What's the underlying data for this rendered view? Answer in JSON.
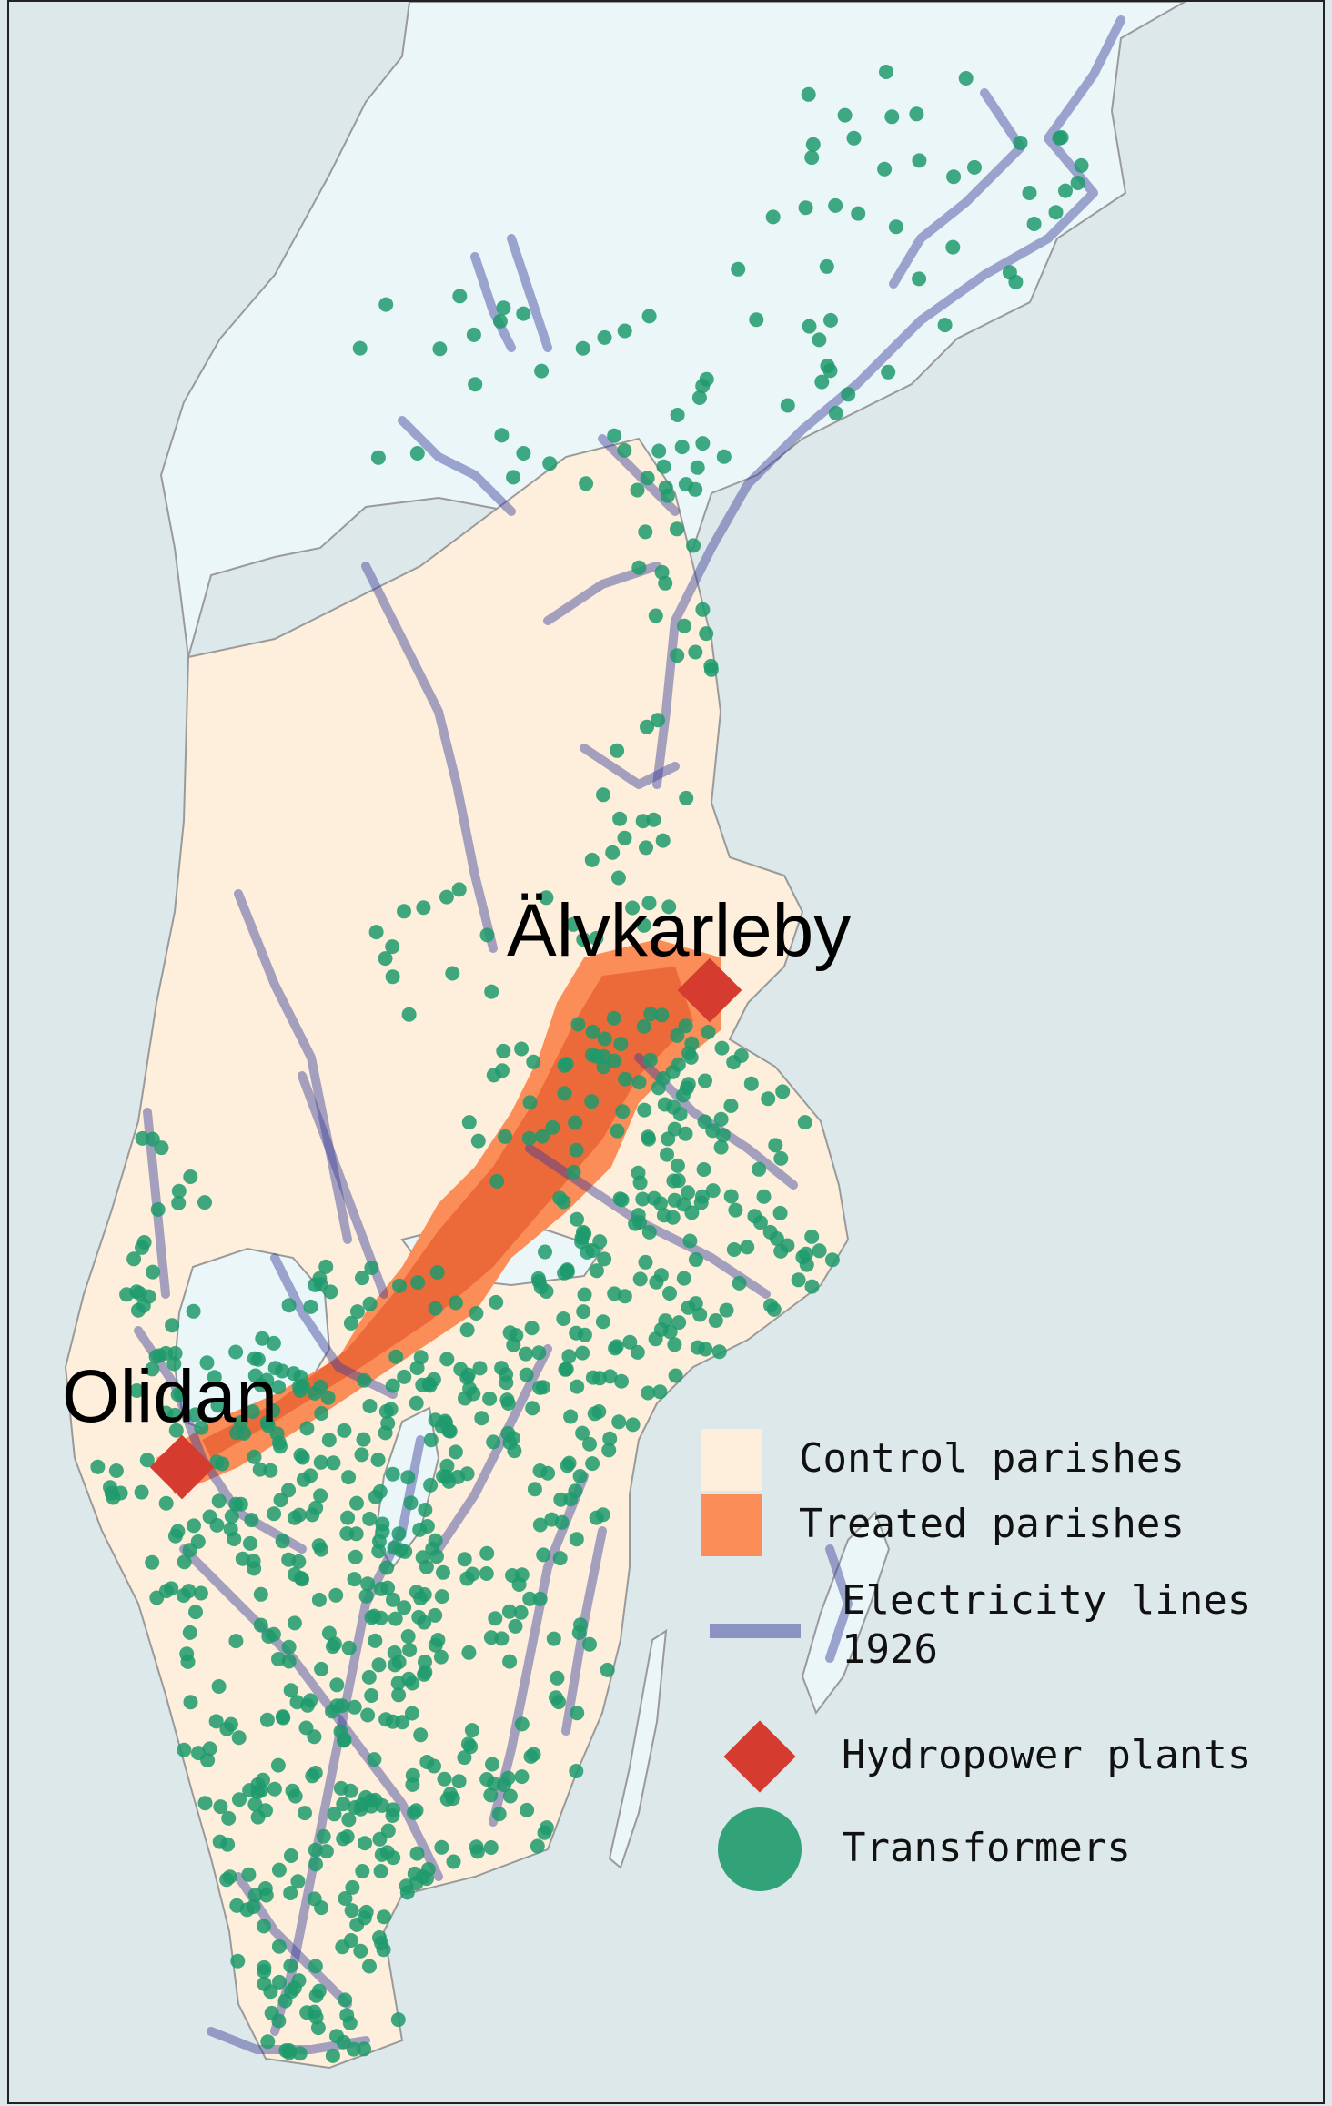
{
  "labels": {
    "alvkarleby": "Älvkarleby",
    "olidan": "Olidan"
  },
  "legend": {
    "control": "Control parishes",
    "treated": "Treated parishes",
    "lines_l1": "Electricity lines",
    "lines_l2": "1926",
    "hydro": "Hydropower plants",
    "transformers": "Transformers"
  },
  "colors": {
    "sea": "#dce8ea",
    "north": "#eaf6f8",
    "control": "#fdefdc",
    "treated": "#fb8d59",
    "treated_dark": "#e55a2e",
    "lines": "#3a3e9a",
    "hydro": "#d63b30",
    "transformer": "#1f9a6c",
    "border": "#9a9a9a"
  },
  "icons": {
    "hydro": "red-diamond-icon",
    "transformer": "green-circle-icon",
    "line": "blue-line-icon"
  }
}
